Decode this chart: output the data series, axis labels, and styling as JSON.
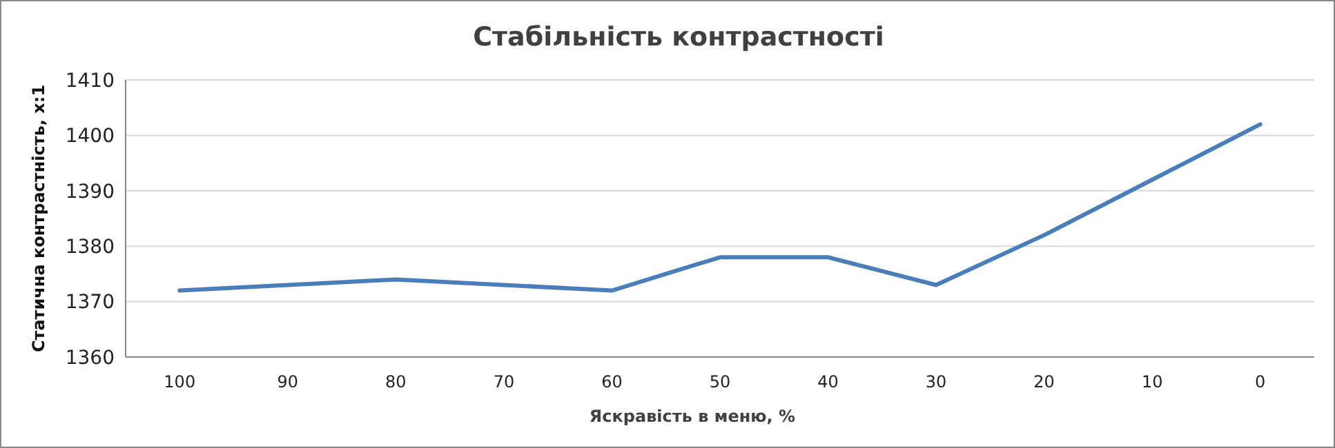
{
  "chart_data": {
    "type": "line",
    "title": "Стабільність контрастності",
    "xlabel": "Яскравість в меню, %",
    "ylabel": "Статична контрастність, x:1",
    "categories": [
      "100",
      "90",
      "80",
      "70",
      "60",
      "50",
      "40",
      "30",
      "20",
      "10",
      "0"
    ],
    "series": [
      {
        "color": "#4a7ebb",
        "values": [
          1372,
          1373,
          1374,
          1373,
          1372,
          1378,
          1378,
          1373,
          1382,
          1392,
          1402
        ]
      }
    ],
    "ylim": [
      1360,
      1410
    ],
    "yticks": [
      1360,
      1370,
      1380,
      1390,
      1400,
      1410
    ],
    "grid": "y",
    "marker": "none",
    "line_style": "solid"
  }
}
